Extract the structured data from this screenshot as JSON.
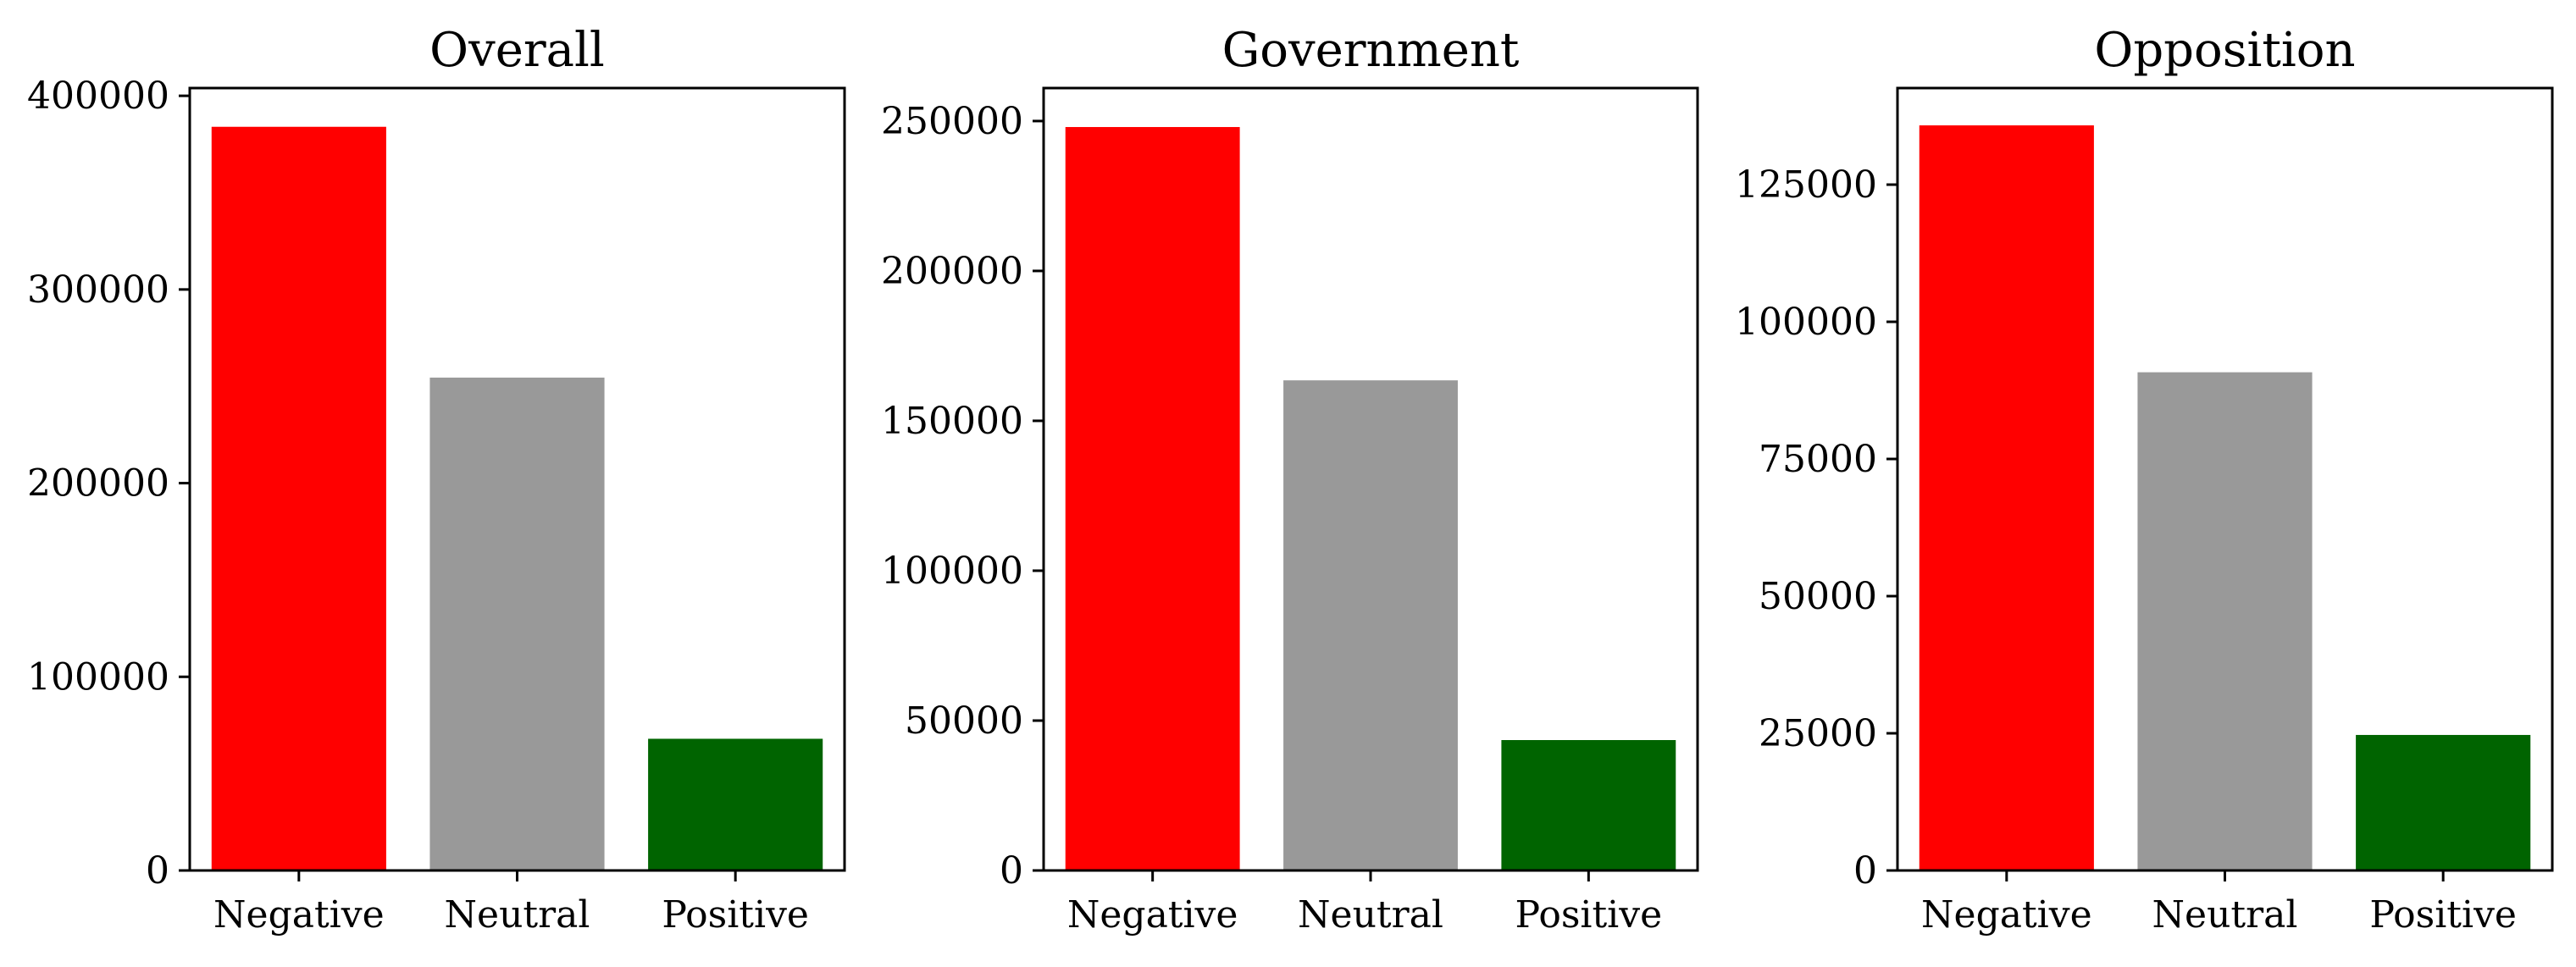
{
  "chart_data": [
    {
      "type": "bar",
      "title": "Overall",
      "categories": [
        "Negative",
        "Neutral",
        "Positive"
      ],
      "values": [
        384000,
        254500,
        68000
      ],
      "colors": [
        "#ff0000",
        "#999999",
        "#006400"
      ],
      "xlabel": "",
      "ylabel": "",
      "ylim": [
        0,
        404000
      ],
      "yticks": [
        0,
        100000,
        200000,
        300000,
        400000
      ],
      "ytick_labels": [
        "0",
        "100000",
        "200000",
        "300000",
        "400000"
      ],
      "grid": false,
      "legend": "none"
    },
    {
      "type": "bar",
      "title": "Government",
      "categories": [
        "Negative",
        "Neutral",
        "Positive"
      ],
      "values": [
        248000,
        163500,
        43500
      ],
      "colors": [
        "#ff0000",
        "#999999",
        "#006400"
      ],
      "xlabel": "",
      "ylabel": "",
      "ylim": [
        0,
        261000
      ],
      "yticks": [
        0,
        50000,
        100000,
        150000,
        200000,
        250000
      ],
      "ytick_labels": [
        "0",
        "50000",
        "100000",
        "150000",
        "200000",
        "250000"
      ],
      "grid": false,
      "legend": "none"
    },
    {
      "type": "bar",
      "title": "Opposition",
      "categories": [
        "Negative",
        "Neutral",
        "Positive"
      ],
      "values": [
        135800,
        90800,
        24700
      ],
      "colors": [
        "#ff0000",
        "#999999",
        "#006400"
      ],
      "xlabel": "",
      "ylabel": "",
      "ylim": [
        0,
        142600
      ],
      "yticks": [
        0,
        25000,
        50000,
        75000,
        100000,
        125000
      ],
      "ytick_labels": [
        "0",
        "25000",
        "50000",
        "75000",
        "100000",
        "125000"
      ],
      "grid": false,
      "legend": "none"
    }
  ]
}
